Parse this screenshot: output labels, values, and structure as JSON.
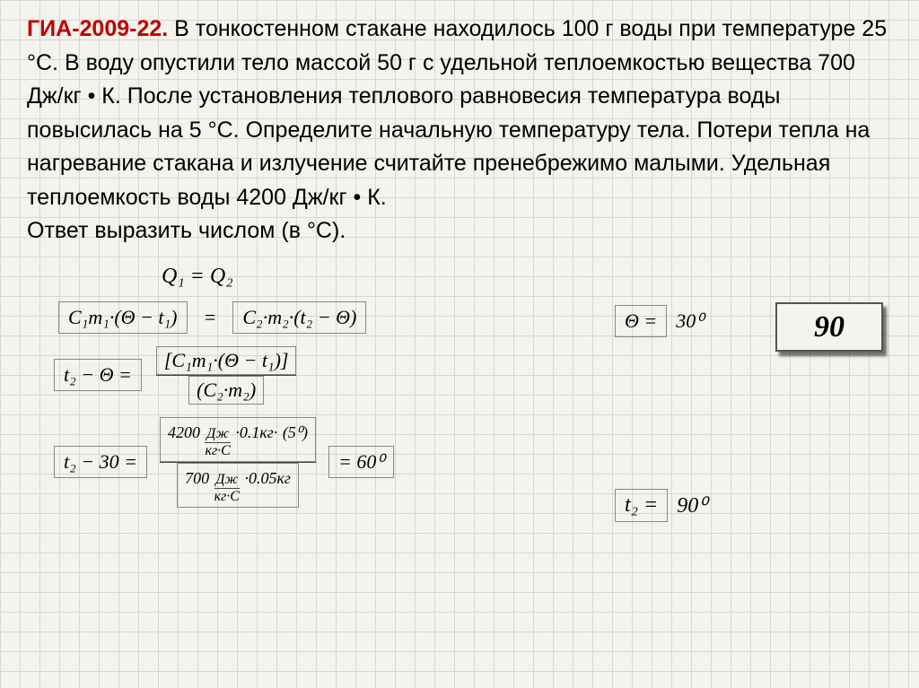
{
  "problem": {
    "title_label": "ГИА-2009-22.",
    "text": "В тонкостенном стакане находилось 100 г воды при температуре 25 °С. В воду опустили тело массой 50 г с удельной теплоемкостью вещества 700 Дж/кг • К. После установления теплового равновесия температура воды повысилась на 5 °С. Определите начальную температуру тела. Потери тепла на нагревание стакана и излучение считайте пренебрежимо малыми. Удельная теплоемкость воды 4200 Дж/кг • К.",
    "answer_hint": "Ответ выразить числом (в °С)."
  },
  "answer_box": {
    "value": "90"
  },
  "equations": {
    "heat_balance": "Q₁ = Q₂",
    "lhs1": "C₁m₁·(Θ − t₁)",
    "rhs1": "C₂·m₂·(t₂ − Θ)",
    "theta_sym": "Θ =",
    "theta_val": "30⁰",
    "lhs2": "t₂ − Θ =",
    "frac2_num": "[C₁m₁·(Θ − t₁)]",
    "frac2_den": "(C₂·m₂)",
    "lhs3": "t₂ − 30 =",
    "num3_coeff": "4200",
    "num3_unit_top": "Дж",
    "num3_unit_bot": "кг·С",
    "num3_mass": "·0.1кг·",
    "num3_dt": "(5⁰)",
    "den3_coeff": "700",
    "den3_unit_top": "Дж",
    "den3_unit_bot": "кг·С",
    "den3_mass": "·0.05кг",
    "result3": "= 60⁰",
    "t2_sym": "t₂ =",
    "t2_val": "90⁰"
  },
  "style": {
    "title_color": "#c00000",
    "text_color": "#000000",
    "grid_color": "#d8d6ce",
    "bg_color": "#f4f3ee",
    "box_border": "#555555",
    "problem_fontsize": 25,
    "answer_fontsize": 34,
    "formula_fontsize": 22
  }
}
